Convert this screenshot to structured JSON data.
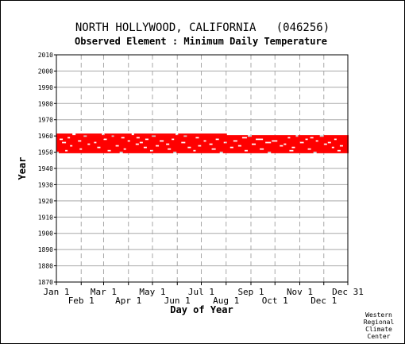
{
  "chart_data": {
    "type": "scatter",
    "title": "NORTH HOLLYWOOD, CALIFORNIA   (046256)",
    "subtitle": "Observed Element : Minimum Daily Temperature",
    "xlabel": "Day of Year",
    "ylabel": "Year",
    "x_ticks_upper": [
      "Jan 1",
      "Mar 1",
      "May 1",
      "Jul 1",
      "Sep 1",
      "Nov 1",
      "Dec 31"
    ],
    "x_ticks_lower": [
      "Feb 1",
      "Apr 1",
      "Jun 1",
      "Aug 1",
      "Oct 1",
      "Dec 1"
    ],
    "y_ticks": [
      "2010",
      "2000",
      "1990",
      "1980",
      "1970",
      "1960",
      "1950",
      "1940",
      "1930",
      "1920",
      "1910",
      "1900",
      "1890",
      "1880",
      "1870"
    ],
    "xlim": [
      1,
      365
    ],
    "ylim": [
      1870,
      2010
    ],
    "grid": true,
    "series_color": "#ff0000",
    "data_years": [
      1950,
      1951,
      1952,
      1953,
      1954,
      1955,
      1956,
      1957,
      1958,
      1959,
      1960,
      1961
    ],
    "data_day_range": [
      1,
      365
    ],
    "gap_records": [
      {
        "year": 1961,
        "days": [
          [
            21,
            24
          ],
          [
            58,
            60
          ],
          [
            95,
            97
          ],
          [
            150,
            152
          ],
          [
            214,
            365
          ]
        ]
      },
      {
        "year": 1960,
        "days": [
          [
            35,
            38
          ],
          [
            70,
            72
          ],
          [
            120,
            124
          ],
          [
            160,
            163
          ],
          [
            240,
            244
          ],
          [
            300,
            302
          ],
          [
            330,
            334
          ]
        ]
      },
      {
        "year": 1959,
        "days": [
          [
            15,
            17
          ],
          [
            82,
            85
          ],
          [
            101,
            104
          ],
          [
            175,
            178
          ],
          [
            233,
            238
          ],
          [
            290,
            292
          ],
          [
            318,
            321
          ]
        ]
      },
      {
        "year": 1958,
        "days": [
          [
            5,
            8
          ],
          [
            60,
            63
          ],
          [
            112,
            115
          ],
          [
            145,
            147
          ],
          [
            200,
            203
          ],
          [
            250,
            258
          ],
          [
            312,
            314
          ],
          [
            348,
            350
          ]
        ]
      },
      {
        "year": 1957,
        "days": [
          [
            28,
            31
          ],
          [
            90,
            92
          ],
          [
            130,
            134
          ],
          [
            185,
            187
          ],
          [
            222,
            226
          ],
          [
            270,
            276
          ],
          [
            325,
            327
          ]
        ]
      },
      {
        "year": 1956,
        "days": [
          [
            8,
            12
          ],
          [
            48,
            50
          ],
          [
            105,
            108
          ],
          [
            157,
            161
          ],
          [
            210,
            213
          ],
          [
            262,
            268
          ],
          [
            305,
            309
          ],
          [
            340,
            343
          ]
        ]
      },
      {
        "year": 1955,
        "days": [
          [
            40,
            42
          ],
          [
            100,
            103
          ],
          [
            138,
            141
          ],
          [
            192,
            195
          ],
          [
            245,
            249
          ],
          [
            285,
            287
          ],
          [
            335,
            338
          ]
        ]
      },
      {
        "year": 1954,
        "days": [
          [
            18,
            20
          ],
          [
            75,
            78
          ],
          [
            125,
            128
          ],
          [
            178,
            181
          ],
          [
            228,
            231
          ],
          [
            280,
            283
          ],
          [
            355,
            358
          ]
        ]
      },
      {
        "year": 1953,
        "days": [
          [
            52,
            55
          ],
          [
            110,
            113
          ],
          [
            165,
            168
          ],
          [
            218,
            221
          ],
          [
            295,
            298
          ],
          [
            345,
            347
          ]
        ]
      },
      {
        "year": 1952,
        "days": [
          [
            30,
            32
          ],
          [
            85,
            87
          ],
          [
            140,
            143
          ],
          [
            195,
            199
          ],
          [
            255,
            259
          ],
          [
            315,
            318
          ]
        ]
      },
      {
        "year": 1951,
        "days": [
          [
            12,
            14
          ],
          [
            65,
            68
          ],
          [
            118,
            121
          ],
          [
            172,
            174
          ],
          [
            236,
            239
          ],
          [
            292,
            296
          ],
          [
            352,
            355
          ]
        ]
      },
      {
        "year": 1950,
        "days": [
          [
            1,
            3
          ],
          [
            80,
            83
          ],
          [
            147,
            150
          ],
          [
            205,
            208
          ],
          [
            265,
            268
          ],
          [
            322,
            325
          ]
        ]
      }
    ]
  },
  "footer": {
    "credit_lines": [
      "Western",
      "Regional",
      "Climate",
      "Center"
    ]
  }
}
